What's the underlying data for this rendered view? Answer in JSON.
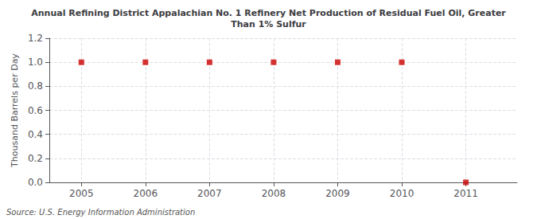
{
  "chart_data": {
    "type": "scatter",
    "title": "Annual Refining District Appalachian No. 1 Refinery Net Production of Residual Fuel Oil, Greater\nThan 1% Sulfur",
    "ylabel": "Thousand Barrels per Day",
    "source": "Source: U.S. Energy Information Administration",
    "x": [
      2005,
      2006,
      2007,
      2008,
      2009,
      2010,
      2011
    ],
    "values": [
      1.0,
      1.0,
      1.0,
      1.0,
      1.0,
      1.0,
      0.0
    ],
    "color": "#cc0000",
    "marker": "square",
    "xlim": [
      2004.5,
      2011.8
    ],
    "xticks": [
      2005,
      2006,
      2007,
      2008,
      2009,
      2010,
      2011
    ],
    "ylim": [
      0.0,
      1.2
    ],
    "yticks": [
      {
        "value": 0,
        "label": "0.0"
      },
      0.2,
      0.4,
      0.6,
      0.8,
      {
        "value": 1,
        "label": "1.0"
      },
      1.2
    ],
    "grid": true
  }
}
